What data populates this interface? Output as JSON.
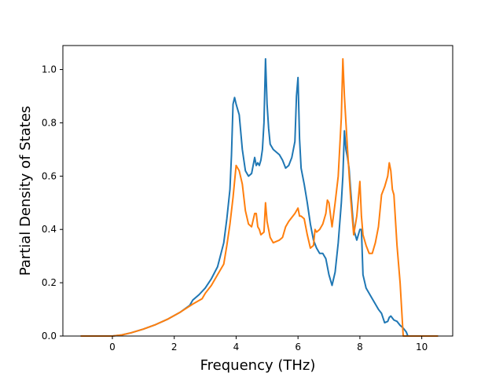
{
  "chart_data": {
    "type": "line",
    "title": "",
    "xlabel": "Frequency (THz)",
    "ylabel": "Partial Density of States",
    "xlim": [
      -1.6,
      11.0
    ],
    "ylim": [
      0.0,
      1.09
    ],
    "xticks": [
      0,
      2,
      4,
      6,
      8,
      10
    ],
    "yticks": [
      0.0,
      0.2,
      0.4,
      0.6,
      0.8,
      1.0
    ],
    "xtick_labels": [
      "0",
      "2",
      "4",
      "6",
      "8",
      "10"
    ],
    "ytick_labels": [
      "0.0",
      "0.2",
      "0.4",
      "0.6",
      "0.8",
      "1.0"
    ],
    "grid": false,
    "legend": "none",
    "series": [
      {
        "color": "#1f77b4",
        "x": [
          -1.0,
          0.0,
          0.3,
          0.6,
          1.0,
          1.4,
          1.8,
          2.2,
          2.5,
          2.6,
          2.8,
          3.0,
          3.2,
          3.4,
          3.6,
          3.7,
          3.8,
          3.85,
          3.9,
          3.95,
          4.0,
          4.1,
          4.2,
          4.3,
          4.4,
          4.5,
          4.6,
          4.65,
          4.7,
          4.75,
          4.8,
          4.85,
          4.9,
          4.95,
          5.0,
          5.05,
          5.1,
          5.2,
          5.3,
          5.4,
          5.5,
          5.6,
          5.7,
          5.8,
          5.9,
          5.95,
          6.0,
          6.05,
          6.1,
          6.2,
          6.3,
          6.4,
          6.5,
          6.6,
          6.7,
          6.8,
          6.9,
          7.0,
          7.1,
          7.2,
          7.3,
          7.4,
          7.45,
          7.5,
          7.55,
          7.6,
          7.65,
          7.7,
          7.8,
          7.9,
          8.0,
          8.05,
          8.1,
          8.2,
          8.4,
          8.6,
          8.7,
          8.8,
          8.9,
          8.95,
          9.0,
          9.1,
          9.2,
          9.3,
          9.4,
          9.5,
          9.55,
          9.6,
          10.0,
          10.5
        ],
        "y": [
          0.0,
          0.0,
          0.004,
          0.012,
          0.026,
          0.043,
          0.064,
          0.09,
          0.115,
          0.135,
          0.155,
          0.18,
          0.215,
          0.26,
          0.35,
          0.44,
          0.55,
          0.68,
          0.87,
          0.895,
          0.87,
          0.83,
          0.7,
          0.62,
          0.6,
          0.61,
          0.67,
          0.64,
          0.65,
          0.64,
          0.66,
          0.7,
          0.8,
          1.04,
          0.87,
          0.78,
          0.72,
          0.7,
          0.69,
          0.68,
          0.66,
          0.63,
          0.64,
          0.67,
          0.73,
          0.9,
          0.97,
          0.74,
          0.63,
          0.57,
          0.5,
          0.42,
          0.36,
          0.33,
          0.31,
          0.31,
          0.29,
          0.23,
          0.19,
          0.24,
          0.35,
          0.5,
          0.6,
          0.77,
          0.7,
          0.67,
          0.63,
          0.55,
          0.4,
          0.36,
          0.4,
          0.4,
          0.23,
          0.18,
          0.14,
          0.1,
          0.085,
          0.05,
          0.055,
          0.07,
          0.075,
          0.06,
          0.055,
          0.04,
          0.03,
          0.015,
          0.0,
          0.0,
          0.0,
          0.0
        ]
      },
      {
        "color": "#ff7f0e",
        "x": [
          -1.0,
          0.0,
          0.3,
          0.6,
          1.0,
          1.4,
          1.8,
          2.2,
          2.6,
          2.9,
          3.0,
          3.2,
          3.4,
          3.6,
          3.7,
          3.8,
          3.9,
          4.0,
          4.1,
          4.2,
          4.3,
          4.4,
          4.5,
          4.6,
          4.65,
          4.7,
          4.75,
          4.8,
          4.9,
          4.95,
          5.0,
          5.05,
          5.1,
          5.2,
          5.4,
          5.5,
          5.6,
          5.7,
          5.9,
          6.0,
          6.05,
          6.1,
          6.2,
          6.3,
          6.4,
          6.5,
          6.55,
          6.6,
          6.7,
          6.8,
          6.9,
          6.95,
          7.0,
          7.1,
          7.2,
          7.3,
          7.4,
          7.45,
          7.5,
          7.6,
          7.7,
          7.8,
          7.9,
          8.0,
          8.05,
          8.1,
          8.2,
          8.3,
          8.4,
          8.5,
          8.6,
          8.7,
          8.8,
          8.9,
          8.95,
          9.0,
          9.05,
          9.1,
          9.2,
          9.3,
          9.4,
          9.5,
          9.6,
          10.0,
          10.5
        ],
        "y": [
          0.0,
          0.0,
          0.004,
          0.012,
          0.026,
          0.043,
          0.064,
          0.09,
          0.12,
          0.14,
          0.16,
          0.19,
          0.23,
          0.27,
          0.34,
          0.42,
          0.52,
          0.64,
          0.62,
          0.57,
          0.47,
          0.42,
          0.41,
          0.46,
          0.46,
          0.41,
          0.4,
          0.38,
          0.39,
          0.5,
          0.43,
          0.4,
          0.37,
          0.35,
          0.36,
          0.37,
          0.41,
          0.43,
          0.46,
          0.48,
          0.45,
          0.45,
          0.44,
          0.38,
          0.33,
          0.34,
          0.4,
          0.39,
          0.4,
          0.42,
          0.46,
          0.51,
          0.5,
          0.41,
          0.5,
          0.6,
          0.82,
          1.04,
          0.9,
          0.7,
          0.52,
          0.38,
          0.45,
          0.58,
          0.45,
          0.38,
          0.34,
          0.31,
          0.31,
          0.35,
          0.41,
          0.53,
          0.56,
          0.6,
          0.65,
          0.62,
          0.55,
          0.53,
          0.34,
          0.2,
          0.0,
          0.0,
          0.0,
          0.0,
          0.0
        ]
      }
    ]
  }
}
